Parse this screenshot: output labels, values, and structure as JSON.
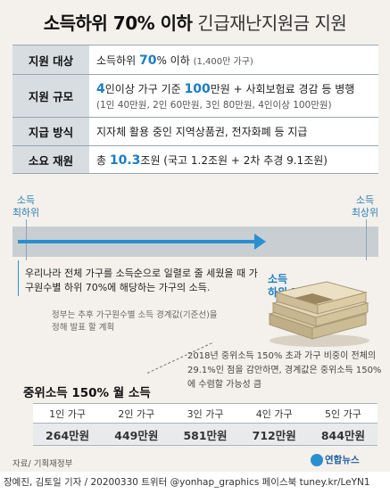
{
  "title": {
    "bold": "소득하위 70% 이하",
    "light": "긴급재난지원금 지원"
  },
  "info": {
    "target": {
      "label": "지원 대상",
      "pre": "소득하위 ",
      "highlight": "70",
      "post": "% 이하",
      "note": "(1,400만 가구)"
    },
    "scale": {
      "label": "지원 규모",
      "hl1": "4",
      "mid": "인이상 가구 기준 ",
      "hl2": "100",
      "post": "만원 + 사회보험료 경감 등 병행",
      "sub": "(1인 40만원, 2인 60만원, 3인 80만원, 4인이상 100만원)"
    },
    "method": {
      "label": "지급 방식",
      "text": "지자체 활용 중인 지역상품권, 전자화폐 등 지급"
    },
    "budget": {
      "label": "소요 재원",
      "pre": "총 ",
      "highlight": "10.3",
      "post": "조원 (국고 1.2조원 + 2차 추경 9.1조원)"
    }
  },
  "scale_bar": {
    "left_label": "소득\n최하위",
    "right_label": "소득\n최상위"
  },
  "explain": "우리나라 전체 가구를 소득순으로 일렬로 줄 세웠을 때 가구원수별 하위 70%에 해당하는 가구의 소득.",
  "low70": "소득\n하위 70%",
  "note1": "정부는 추후 가구원수별 소득 경계값(기준선)을 정해 발표 할 계획",
  "note2": "2018년 중위소득 150% 초과 가구 비중이 전체의 29.1%인 점을 감안하면, 경계값은 중위소득 150%에 수렴할 가능성 큼",
  "median": {
    "title": "중위소득 150% 월 소득",
    "headers": [
      "1인 가구",
      "2인 가구",
      "3인 가구",
      "4인 가구",
      "5인 가구"
    ],
    "values": [
      "264만원",
      "449만원",
      "581만원",
      "712만원",
      "844만원"
    ]
  },
  "source": "자료/ 기획재정부",
  "logo": "연합뉴스",
  "credit": "장예진, 김토일 기자 / 20200330 트위터 @yonhap_graphics 페이스북 tuney.kr/LeYN1",
  "colors": {
    "accent": "#1a7ec2",
    "arrow": "#2a8fd0",
    "label_bg": "#d8dde2",
    "scale_bg": "#c9ced3"
  }
}
